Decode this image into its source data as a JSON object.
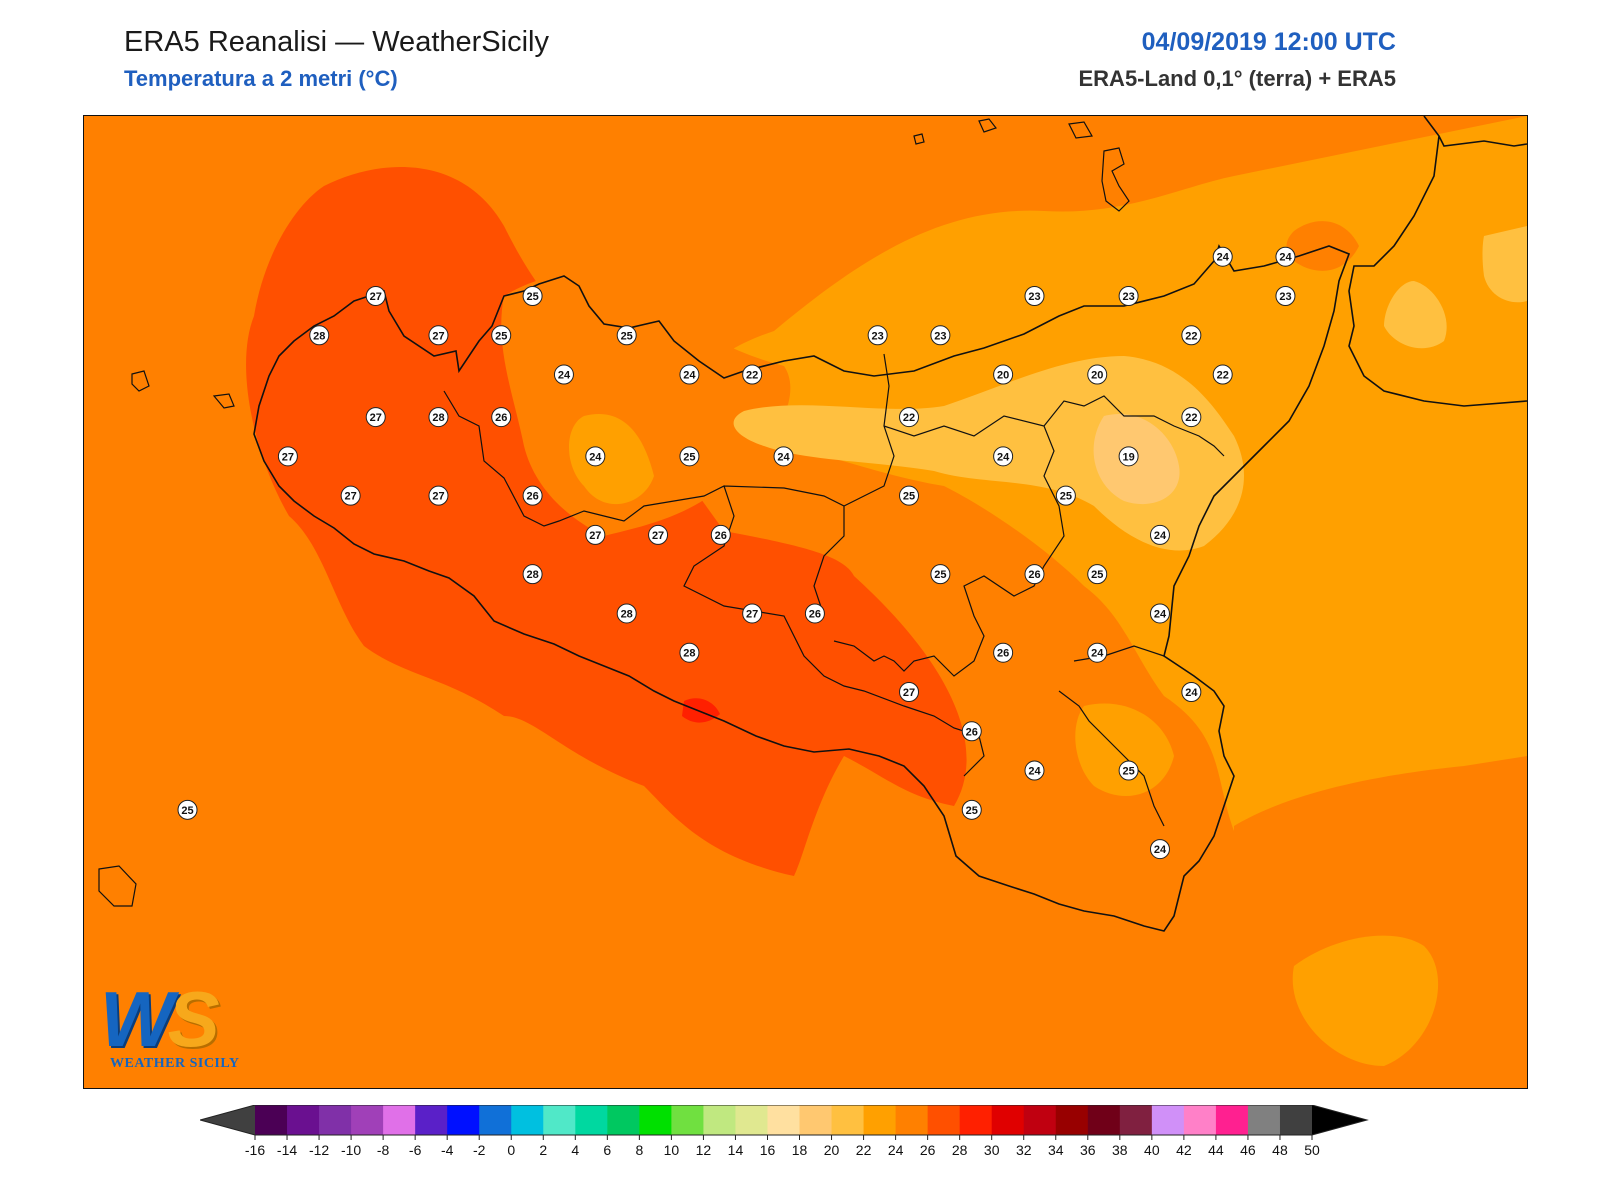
{
  "header": {
    "title": "ERA5 Reanalisi — WeatherSicily",
    "subtitle": "Temperatura a 2 metri (°C)",
    "datetime": "04/09/2019 12:00 UTC",
    "source": "ERA5-Land 0,1° (terra) + ERA5"
  },
  "logo": {
    "letters_w": "W",
    "letters_s": "S",
    "name": "WEATHER SICILY"
  },
  "colorbar": {
    "ticks": [
      "-16",
      "-14",
      "-12",
      "-10",
      "-8",
      "-6",
      "-4",
      "-2",
      "0",
      "2",
      "4",
      "6",
      "8",
      "10",
      "12",
      "14",
      "16",
      "18",
      "20",
      "22",
      "24",
      "26",
      "28",
      "30",
      "32",
      "34",
      "36",
      "38",
      "40",
      "42",
      "44",
      "46",
      "48",
      "50"
    ],
    "colors": [
      "#4b0055",
      "#6a1090",
      "#8030a8",
      "#a040b8",
      "#e070e8",
      "#5a20c8",
      "#0010ff",
      "#1070d8",
      "#00c0e0",
      "#50e8c8",
      "#00d8a0",
      "#00c860",
      "#00e000",
      "#70e040",
      "#c0e880",
      "#e0e890",
      "#ffe0a0",
      "#ffc870",
      "#ffc040",
      "#ffa000",
      "#ff8000",
      "#ff5000",
      "#ff2000",
      "#e00000",
      "#c00010",
      "#980000",
      "#700018",
      "#802040",
      "#d090f8",
      "#ff80c8",
      "#ff2090",
      "#808080",
      "#404040"
    ],
    "under_color": "#404040",
    "over_color": "#000000"
  },
  "stations": [
    {
      "v": "27",
      "x": 12.53,
      "y": 38.17
    },
    {
      "v": "28",
      "x": 12.35,
      "y": 38.05
    },
    {
      "v": "27",
      "x": 12.73,
      "y": 38.05
    },
    {
      "v": "25",
      "x": 13.03,
      "y": 38.17
    },
    {
      "v": "25",
      "x": 12.93,
      "y": 38.05
    },
    {
      "v": "25",
      "x": 13.33,
      "y": 38.05
    },
    {
      "v": "27",
      "x": 12.53,
      "y": 37.8
    },
    {
      "v": "28",
      "x": 12.73,
      "y": 37.8
    },
    {
      "v": "26",
      "x": 12.93,
      "y": 37.8
    },
    {
      "v": "27",
      "x": 12.25,
      "y": 37.68
    },
    {
      "v": "27",
      "x": 12.45,
      "y": 37.56
    },
    {
      "v": "27",
      "x": 12.73,
      "y": 37.56
    },
    {
      "v": "26",
      "x": 13.03,
      "y": 37.56
    },
    {
      "v": "24",
      "x": 13.13,
      "y": 37.93
    },
    {
      "v": "24",
      "x": 13.53,
      "y": 37.93
    },
    {
      "v": "22",
      "x": 13.73,
      "y": 37.93
    },
    {
      "v": "24",
      "x": 13.23,
      "y": 37.68
    },
    {
      "v": "25",
      "x": 13.53,
      "y": 37.68
    },
    {
      "v": "24",
      "x": 13.83,
      "y": 37.68
    },
    {
      "v": "23",
      "x": 14.13,
      "y": 38.05
    },
    {
      "v": "23",
      "x": 14.33,
      "y": 38.05
    },
    {
      "v": "23",
      "x": 14.63,
      "y": 38.17
    },
    {
      "v": "23",
      "x": 14.93,
      "y": 38.17
    },
    {
      "v": "22",
      "x": 15.13,
      "y": 38.05
    },
    {
      "v": "24",
      "x": 15.23,
      "y": 38.29
    },
    {
      "v": "24",
      "x": 15.43,
      "y": 38.29
    },
    {
      "v": "23",
      "x": 15.43,
      "y": 38.17
    },
    {
      "v": "20",
      "x": 14.53,
      "y": 37.93
    },
    {
      "v": "20",
      "x": 14.83,
      "y": 37.93
    },
    {
      "v": "22",
      "x": 15.23,
      "y": 37.93
    },
    {
      "v": "22",
      "x": 14.23,
      "y": 37.8
    },
    {
      "v": "22",
      "x": 15.13,
      "y": 37.8
    },
    {
      "v": "19",
      "x": 14.93,
      "y": 37.68
    },
    {
      "v": "24",
      "x": 14.53,
      "y": 37.68
    },
    {
      "v": "25",
      "x": 14.23,
      "y": 37.56
    },
    {
      "v": "25",
      "x": 14.73,
      "y": 37.56
    },
    {
      "v": "27",
      "x": 13.23,
      "y": 37.44
    },
    {
      "v": "27",
      "x": 13.43,
      "y": 37.44
    },
    {
      "v": "26",
      "x": 13.63,
      "y": 37.44
    },
    {
      "v": "24",
      "x": 15.03,
      "y": 37.44
    },
    {
      "v": "28",
      "x": 13.03,
      "y": 37.32
    },
    {
      "v": "25",
      "x": 14.33,
      "y": 37.32
    },
    {
      "v": "26",
      "x": 14.63,
      "y": 37.32
    },
    {
      "v": "25",
      "x": 14.83,
      "y": 37.32
    },
    {
      "v": "28",
      "x": 13.33,
      "y": 37.2
    },
    {
      "v": "27",
      "x": 13.73,
      "y": 37.2
    },
    {
      "v": "26",
      "x": 13.93,
      "y": 37.2
    },
    {
      "v": "24",
      "x": 15.03,
      "y": 37.2
    },
    {
      "v": "28",
      "x": 13.53,
      "y": 37.08
    },
    {
      "v": "26",
      "x": 14.53,
      "y": 37.08
    },
    {
      "v": "24",
      "x": 14.83,
      "y": 37.08
    },
    {
      "v": "27",
      "x": 14.23,
      "y": 36.96
    },
    {
      "v": "24",
      "x": 15.13,
      "y": 36.96
    },
    {
      "v": "26",
      "x": 14.43,
      "y": 36.84
    },
    {
      "v": "24",
      "x": 14.63,
      "y": 36.72
    },
    {
      "v": "25",
      "x": 14.93,
      "y": 36.72
    },
    {
      "v": "25",
      "x": 14.43,
      "y": 36.6
    },
    {
      "v": "24",
      "x": 15.03,
      "y": 36.48
    },
    {
      "v": "25",
      "x": 11.93,
      "y": 36.6
    }
  ]
}
